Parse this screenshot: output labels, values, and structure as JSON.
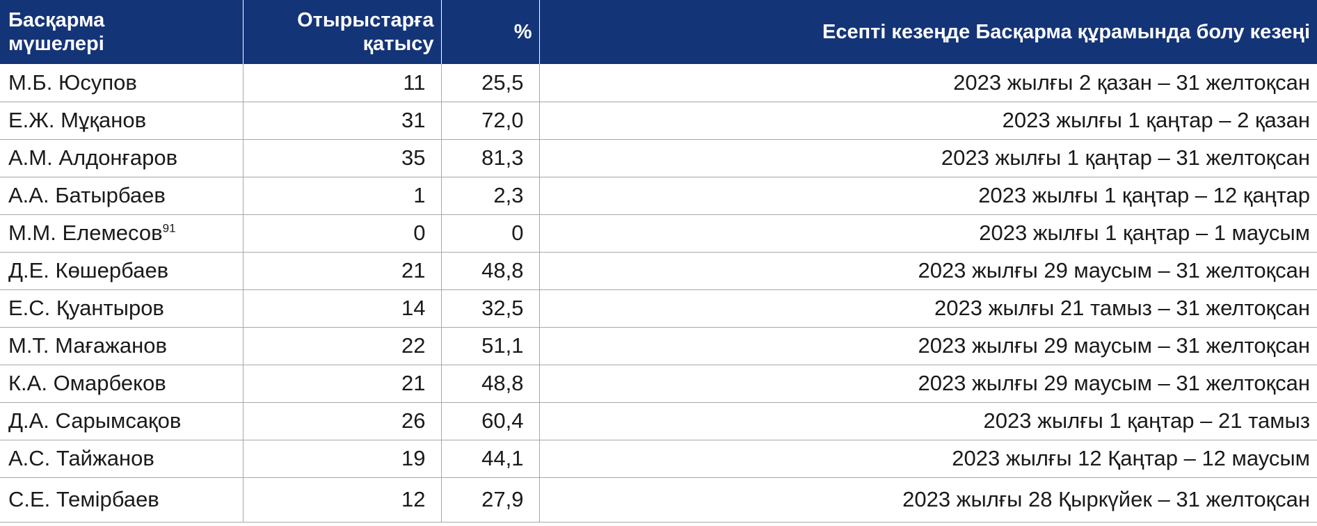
{
  "header": {
    "name_line1": "Басқарма",
    "name_line2": "мүшелері",
    "attendance_line1": "Отырыстарға",
    "attendance_line2": "қатысу",
    "percent": "%",
    "period": "Есепті кезеңде Басқарма құрамында болу кезеңі"
  },
  "rows": [
    {
      "name": "М.Б. Юсупов",
      "footnote": "",
      "attendance": "11",
      "percent": "25,5",
      "period": "2023 жылғы 2 қазан – 31 желтоқсан"
    },
    {
      "name": "Е.Ж. Мұқанов",
      "footnote": "",
      "attendance": "31",
      "percent": "72,0",
      "period": "2023 жылғы 1 қаңтар – 2 қазан"
    },
    {
      "name": "А.М. Алдонғаров",
      "footnote": "",
      "attendance": "35",
      "percent": "81,3",
      "period": "2023 жылғы 1 қаңтар – 31 желтоқсан"
    },
    {
      "name": "А.А. Батырбаев",
      "footnote": "",
      "attendance": "1",
      "percent": "2,3",
      "period": "2023 жылғы 1 қаңтар – 12 қаңтар"
    },
    {
      "name": "М.М. Елемесов",
      "footnote": "91",
      "attendance": "0",
      "percent": "0",
      "period": "2023 жылғы 1 қаңтар – 1 маусым"
    },
    {
      "name": "Д.Е. Көшербаев",
      "footnote": "",
      "attendance": "21",
      "percent": "48,8",
      "period": "2023 жылғы 29 маусым – 31 желтоқсан"
    },
    {
      "name": "Е.С. Қуантыров",
      "footnote": "",
      "attendance": "14",
      "percent": "32,5",
      "period": "2023 жылғы 21 тамыз – 31 желтоқсан"
    },
    {
      "name": "М.Т. Мағажанов",
      "footnote": "",
      "attendance": "22",
      "percent": "51,1",
      "period": "2023 жылғы 29 маусым – 31 желтоқсан"
    },
    {
      "name": "К.А. Омарбеков",
      "footnote": "",
      "attendance": "21",
      "percent": "48,8",
      "period": "2023 жылғы 29 маусым – 31 желтоқсан"
    },
    {
      "name": "Д.А. Сарымсақов",
      "footnote": "",
      "attendance": "26",
      "percent": "60,4",
      "period": "2023 жылғы 1 қаңтар – 21 тамыз"
    },
    {
      "name": "А.С. Тайжанов",
      "footnote": "",
      "attendance": "19",
      "percent": "44,1",
      "period": "2023 жылғы 12 Қаңтар – 12 маусым"
    },
    {
      "name": "С.Е. Темірбаев",
      "footnote": "",
      "attendance": "12",
      "percent": "27,9",
      "period": "2023 жылғы 28 Қыркүйек – 31 желтоқсан"
    }
  ]
}
